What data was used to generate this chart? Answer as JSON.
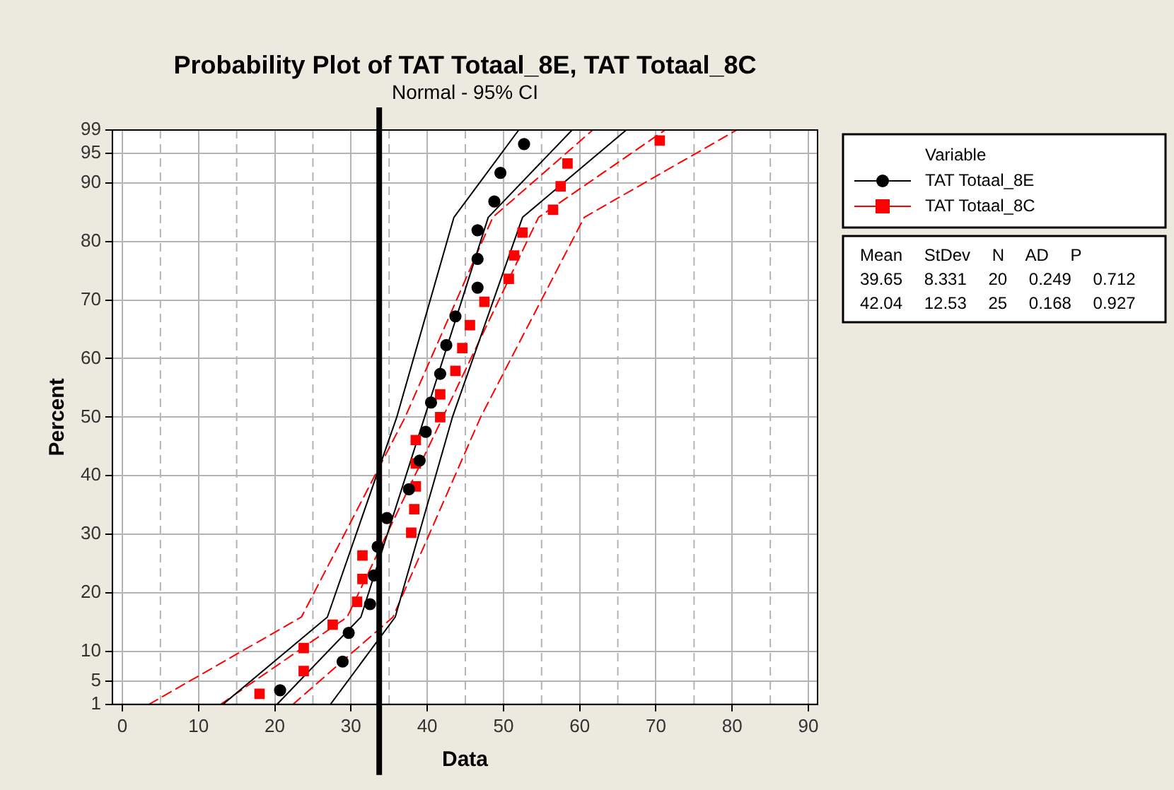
{
  "chart_data": {
    "type": "scatter",
    "title": "Probability Plot of TAT Totaal_8E, TAT Totaal_8C",
    "subtitle": "Normal - 95% CI",
    "xlabel": "Data",
    "ylabel": "Percent",
    "legend_title": "Variable",
    "legend": "right",
    "grid": true,
    "xlim": [
      -1.3,
      91.2
    ],
    "xticks": [
      0,
      10,
      20,
      30,
      40,
      50,
      60,
      70,
      80,
      90
    ],
    "ylim": [
      1,
      99
    ],
    "yticks": [
      1,
      5,
      10,
      20,
      30,
      40,
      50,
      60,
      70,
      80,
      90,
      95,
      99
    ],
    "series": [
      {
        "name": "TAT Totaal_8E",
        "type": "scatter",
        "marker": "circle",
        "color": "#000000",
        "x": [
          20.7,
          28.9,
          29.7,
          32.5,
          33.0,
          33.5,
          34.7,
          37.6,
          39.0,
          39.8,
          40.5,
          41.7,
          42.5,
          43.7,
          46.6,
          46.6,
          46.6,
          48.8,
          49.6,
          52.7
        ],
        "values": [
          3.4,
          8.3,
          13.2,
          18.1,
          23.0,
          27.9,
          32.8,
          37.7,
          42.6,
          47.5,
          52.5,
          57.4,
          62.3,
          67.2,
          72.1,
          77.0,
          81.9,
          86.8,
          91.7,
          96.6
        ]
      },
      {
        "name": "TAT Totaal_8C",
        "type": "scatter",
        "marker": "square",
        "color": "#ff0000",
        "x": [
          18.0,
          23.8,
          23.8,
          27.6,
          30.8,
          31.5,
          31.5,
          37.9,
          38.3,
          38.5,
          38.5,
          38.5,
          41.7,
          41.7,
          43.7,
          44.6,
          45.6,
          47.5,
          50.7,
          51.4,
          52.5,
          56.5,
          57.5,
          58.4,
          70.5
        ],
        "values": [
          2.8,
          6.7,
          10.6,
          14.6,
          18.5,
          22.4,
          26.4,
          30.3,
          34.3,
          38.2,
          42.1,
          46.1,
          50.0,
          53.9,
          57.9,
          61.8,
          65.7,
          69.7,
          73.6,
          77.6,
          81.5,
          85.4,
          89.4,
          93.3,
          97.2
        ]
      },
      {
        "type": "line",
        "line_style": "solid",
        "color": "#000000",
        "x": [
          20.3,
          31.3,
          39.65,
          48.0,
          59.0
        ],
        "values": [
          1,
          15.9,
          50,
          84.1,
          99
        ]
      },
      {
        "type": "line",
        "line_style": "solid",
        "color": "#000000",
        "x": [
          13.2,
          26.9,
          36.0,
          43.5,
          52.0
        ],
        "values": [
          1,
          15.9,
          50,
          84.1,
          99
        ]
      },
      {
        "type": "line",
        "line_style": "solid",
        "color": "#000000",
        "x": [
          27.3,
          35.8,
          43.3,
          52.5,
          66.1
        ],
        "values": [
          1,
          15.9,
          50,
          84.1,
          99
        ]
      },
      {
        "type": "line",
        "line_style": "dashed",
        "color": "#ff0000",
        "x": [
          12.9,
          29.5,
          42.04,
          54.6,
          71.2
        ],
        "values": [
          1,
          15.9,
          50,
          84.1,
          99
        ]
      },
      {
        "type": "line",
        "line_style": "dashed",
        "color": "#ff0000",
        "x": [
          3.5,
          23.5,
          37.1,
          48.6,
          61.7
        ],
        "values": [
          1,
          15.9,
          50,
          84.1,
          99
        ]
      },
      {
        "type": "line",
        "line_style": "dashed",
        "color": "#ff0000",
        "x": [
          22.4,
          35.5,
          47.0,
          60.6,
          80.6
        ],
        "values": [
          1,
          15.9,
          50,
          84.1,
          99
        ]
      }
    ],
    "ref_lines": [
      {
        "axis": "x",
        "value": 33.7,
        "color": "#000000"
      }
    ],
    "annotations": [
      "Mean StDev N AD P",
      "39.65 8.331 20 0.249 0.712",
      "42.04 12.53 25 0.168 0.927"
    ]
  }
}
